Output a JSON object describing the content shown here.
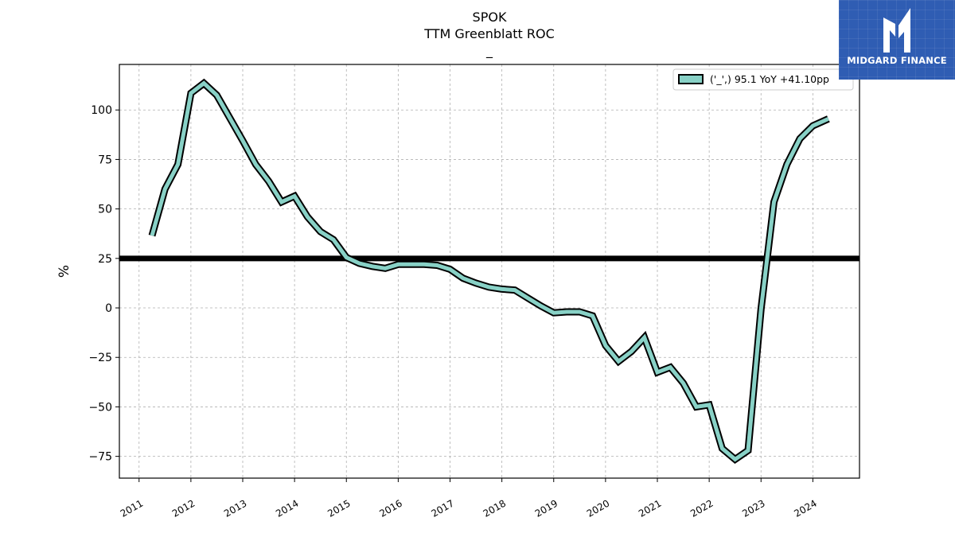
{
  "chart_data": {
    "type": "line",
    "title": "SPOK",
    "subtitle": "TTM Greenblatt ROC",
    "subtitle2": "_",
    "ylabel": "%",
    "xlabel": "",
    "ylim": [
      -86,
      123
    ],
    "xlim": [
      2010.62,
      2024.9
    ],
    "y_ticks": [
      -75,
      -50,
      -25,
      0,
      25,
      50,
      75,
      100
    ],
    "x_ticks": [
      2011,
      2012,
      2013,
      2014,
      2015,
      2016,
      2017,
      2018,
      2019,
      2020,
      2021,
      2022,
      2023,
      2024
    ],
    "grid": true,
    "legend_position": "top-right",
    "reference_line": {
      "value": 25,
      "color": "#000000"
    },
    "series": [
      {
        "name": "('_',) 95.1 YoY +41.10pp",
        "color": "#88d1c6",
        "edge_color": "#000000",
        "points": [
          [
            2011.25,
            36.5
          ],
          [
            2011.5,
            60
          ],
          [
            2011.75,
            72.5
          ],
          [
            2012.0,
            108.5
          ],
          [
            2012.25,
            113.5
          ],
          [
            2012.5,
            107.5
          ],
          [
            2012.75,
            96
          ],
          [
            2013.0,
            84.5
          ],
          [
            2013.25,
            72.5
          ],
          [
            2013.5,
            64
          ],
          [
            2013.75,
            53.5
          ],
          [
            2014.0,
            56.5
          ],
          [
            2014.25,
            46
          ],
          [
            2014.5,
            38.5
          ],
          [
            2014.75,
            34.5
          ],
          [
            2015.0,
            25.5
          ],
          [
            2015.25,
            22.5
          ],
          [
            2015.5,
            21
          ],
          [
            2015.75,
            20
          ],
          [
            2016.0,
            22
          ],
          [
            2016.25,
            22
          ],
          [
            2016.5,
            22
          ],
          [
            2016.75,
            21.5
          ],
          [
            2017.0,
            19.5
          ],
          [
            2017.25,
            15
          ],
          [
            2017.5,
            12.5
          ],
          [
            2017.75,
            10.5
          ],
          [
            2018.0,
            9.5
          ],
          [
            2018.25,
            9
          ],
          [
            2018.5,
            5
          ],
          [
            2018.75,
            1
          ],
          [
            2019.0,
            -2.5
          ],
          [
            2019.25,
            -2
          ],
          [
            2019.5,
            -2
          ],
          [
            2019.75,
            -4
          ],
          [
            2020.0,
            -19
          ],
          [
            2020.25,
            -27
          ],
          [
            2020.5,
            -22
          ],
          [
            2020.75,
            -15
          ],
          [
            2021.0,
            -32.5
          ],
          [
            2021.25,
            -30
          ],
          [
            2021.5,
            -38
          ],
          [
            2021.75,
            -50
          ],
          [
            2022.0,
            -49
          ],
          [
            2022.25,
            -71
          ],
          [
            2022.5,
            -76.5
          ],
          [
            2022.75,
            -72
          ],
          [
            2023.0,
            -0.5
          ],
          [
            2023.25,
            53.5
          ],
          [
            2023.5,
            72.5
          ],
          [
            2023.75,
            85.5
          ],
          [
            2024.0,
            92
          ],
          [
            2024.3,
            95.5
          ]
        ]
      }
    ]
  },
  "logo": {
    "text": "MIDGARD FINANCE",
    "icon": "midgard-logo-icon",
    "background": "#2f5db3"
  }
}
